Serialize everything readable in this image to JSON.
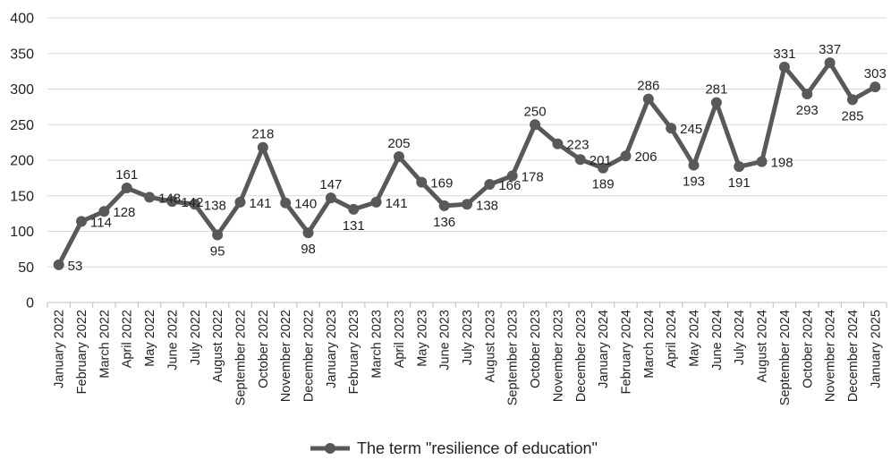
{
  "chart_data": {
    "type": "line",
    "title": "",
    "xlabel": "",
    "ylabel": "",
    "ylim": [
      0,
      400
    ],
    "yticks": [
      0,
      50,
      100,
      150,
      200,
      250,
      300,
      350,
      400
    ],
    "grid": "horizontal",
    "legend_position": "bottom-center",
    "categories": [
      "January 2022",
      "February 2022",
      "March 2022",
      "April 2022",
      "May 2022",
      "June 2022",
      "July 2022",
      "August 2022",
      "September 2022",
      "October 2022",
      "November 2022",
      "December 2022",
      "January 2023",
      "February 2023",
      "March 2023",
      "April 2023",
      "May 2023",
      "June 2023",
      "July 2023",
      "August 2023",
      "September 2023",
      "October 2023",
      "November 2023",
      "December 2023",
      "January 2024",
      "February 2024",
      "March 2024",
      "April 2024",
      "May 2024",
      "June 2024",
      "July 2024",
      "August 2024",
      "September 2024",
      "October 2024",
      "November 2024",
      "December 2024",
      "January 2025"
    ],
    "series": [
      {
        "name": "The term \"resilience of education\"",
        "color": "#595959",
        "values": [
          53,
          114,
          128,
          161,
          148,
          142,
          138,
          95,
          141,
          218,
          140,
          98,
          147,
          131,
          141,
          205,
          169,
          136,
          138,
          166,
          178,
          250,
          223,
          201,
          189,
          206,
          286,
          245,
          193,
          281,
          191,
          198,
          331,
          293,
          337,
          285,
          303
        ]
      }
    ]
  }
}
